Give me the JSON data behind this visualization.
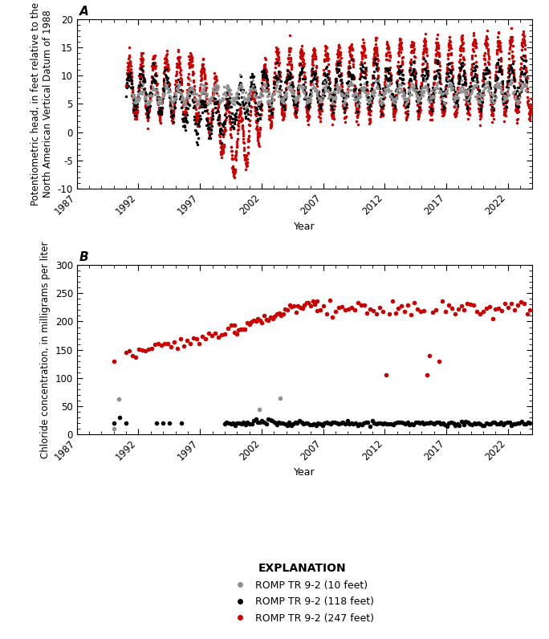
{
  "title_A": "A",
  "title_B": "B",
  "ylabel_A": "Potentiometric head, in feet relative to the\nNorth American Vertical Datum of 1988",
  "ylabel_B": "Chloride concentration, in milligrams per liter",
  "xlabel": "Year",
  "ylim_A": [
    -10,
    20
  ],
  "ylim_B": [
    0,
    300
  ],
  "yticks_A": [
    -10,
    -5,
    0,
    5,
    10,
    15,
    20
  ],
  "yticks_B": [
    0,
    50,
    100,
    150,
    200,
    250,
    300
  ],
  "xlim": [
    1987,
    2024
  ],
  "xticks": [
    1987,
    1992,
    1997,
    2002,
    2007,
    2012,
    2017,
    2022
  ],
  "color_10ft": "#909090",
  "color_118ft": "#000000",
  "color_247ft": "#cc0000",
  "legend_title": "EXPLANATION",
  "legend_labels": [
    "ROMP TR 9-2 (10 feet)",
    "ROMP TR 9-2 (118 feet)",
    "ROMP TR 9-2 (247 feet)"
  ]
}
